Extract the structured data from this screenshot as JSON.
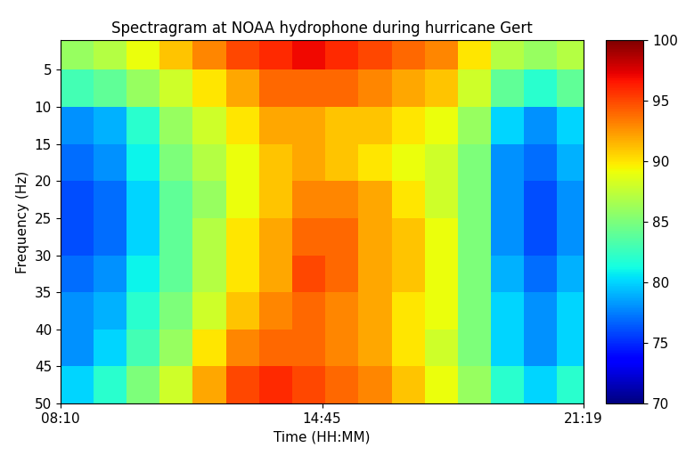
{
  "chart_data": {
    "type": "heatmap",
    "title": "Spectragram at NOAA hydrophone during hurricane Gert",
    "x_label": "Time (HH:MM)",
    "y_label": "Frequency (Hz)",
    "x_edges": [
      0,
      50,
      100,
      150,
      200,
      250,
      300,
      350,
      400,
      450,
      500,
      550,
      600,
      650,
      700,
      750,
      789
    ],
    "y_edges": [
      1,
      5,
      10,
      15,
      20,
      25,
      30,
      35,
      40,
      45,
      50
    ],
    "xlim": [
      0,
      789
    ],
    "xticks": [
      {
        "value": 0,
        "label": "08:10"
      },
      {
        "value": 395,
        "label": "14:45"
      },
      {
        "value": 789,
        "label": "21:19"
      }
    ],
    "ylim": [
      50,
      1
    ],
    "yticks": [
      5,
      10,
      15,
      20,
      25,
      30,
      35,
      40,
      45,
      50
    ],
    "cells": [
      [
        86,
        87,
        89,
        91,
        93,
        95,
        96,
        97,
        96,
        95,
        94,
        93,
        90,
        87,
        86,
        87
      ],
      [
        83,
        84,
        86,
        88,
        90,
        92,
        94,
        94,
        94,
        93,
        92,
        91,
        88,
        84,
        82,
        84
      ],
      [
        78,
        79,
        82,
        86,
        88,
        90,
        92,
        92,
        91,
        91,
        90,
        89,
        86,
        80,
        78,
        80
      ],
      [
        77,
        78,
        81,
        85,
        87,
        89,
        91,
        92,
        91,
        90,
        89,
        88,
        85,
        78,
        77,
        79
      ],
      [
        76,
        77,
        80,
        84,
        86,
        89,
        91,
        93,
        93,
        92,
        90,
        88,
        85,
        78,
        76,
        78
      ],
      [
        76,
        77,
        80,
        84,
        87,
        90,
        92,
        94,
        94,
        92,
        91,
        89,
        85,
        78,
        76,
        78
      ],
      [
        77,
        78,
        81,
        84,
        87,
        90,
        92,
        95,
        94,
        92,
        91,
        89,
        85,
        79,
        77,
        79
      ],
      [
        78,
        79,
        82,
        85,
        88,
        91,
        93,
        94,
        93,
        92,
        90,
        89,
        85,
        80,
        78,
        80
      ],
      [
        78,
        80,
        83,
        86,
        90,
        93,
        94,
        94,
        93,
        92,
        90,
        88,
        85,
        80,
        78,
        80
      ],
      [
        80,
        82,
        85,
        88,
        92,
        95,
        96,
        95,
        94,
        93,
        91,
        89,
        86,
        82,
        80,
        82
      ]
    ],
    "colorbar_range": [
      70,
      100
    ],
    "colorbar_ticks": [
      70,
      75,
      80,
      85,
      90,
      95,
      100
    ]
  }
}
